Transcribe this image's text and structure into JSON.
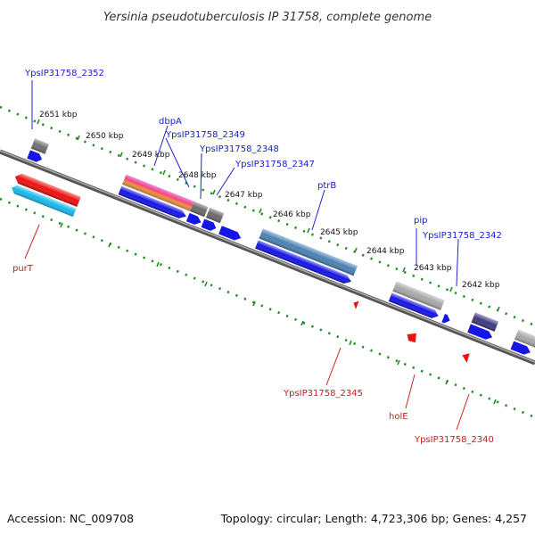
{
  "title": "Yersinia pseudotuberculosis IP 31758, complete genome",
  "footer": {
    "accession": "Accession: NC_009708",
    "summary": "Topology: circular; Length: 4,723,306 bp; Genes: 4,257"
  },
  "colors": {
    "backbone": "#7a7a7a",
    "dots": "#1e8c1e",
    "forward_label": "#1a1acc",
    "reverse_label": "#cc1a1a",
    "cds": "#1515e6",
    "reverse_gene": "#ee1111"
  },
  "ticks": [
    "2651 kbp",
    "2650 kbp",
    "2649 kbp",
    "2648 kbp",
    "2647 kbp",
    "2646 kbp",
    "2645 kbp",
    "2644 kbp",
    "2643 kbp",
    "2642 kbp"
  ],
  "forward_labels": [
    "YpsIP31758_2352",
    "dbpA",
    "YpsIP31758_2349",
    "YpsIP31758_2348",
    "YpsIP31758_2347",
    "ptrB",
    "pip",
    "YpsIP31758_2342"
  ],
  "reverse_labels": [
    "purT",
    "YpsIP31758_2345",
    "holE",
    "YpsIP31758_2340"
  ]
}
